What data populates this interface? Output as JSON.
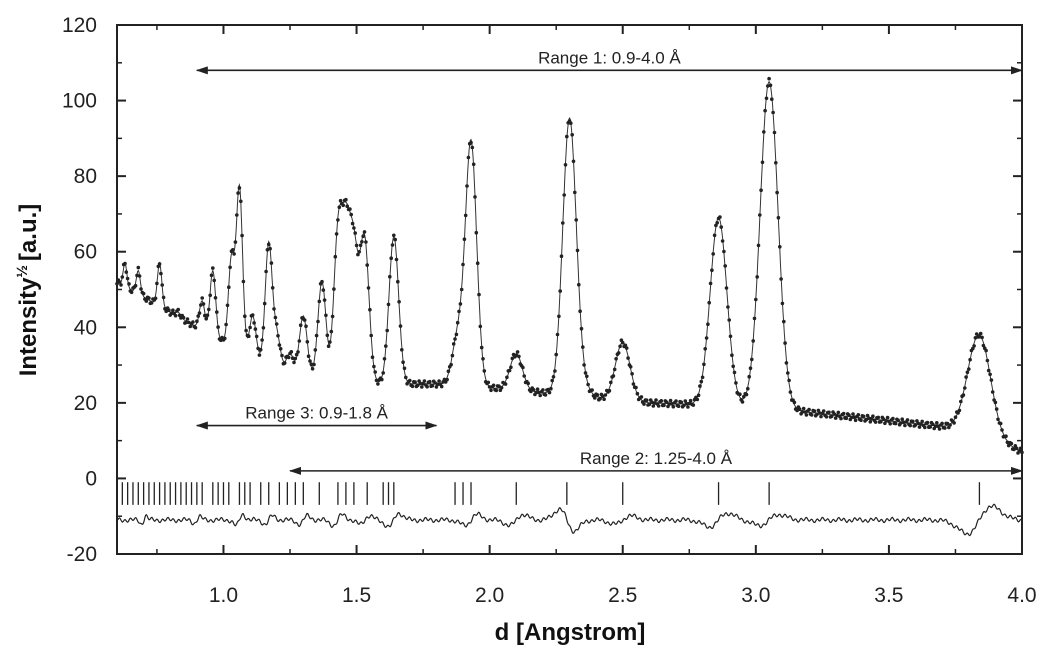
{
  "chart_data": {
    "type": "scatter",
    "title": "",
    "xlabel": "d [Angstrom]",
    "ylabel_main": "Intensity",
    "ylabel_sup": "½",
    "ylabel_unit": "[a.u.]",
    "xlim": [
      0.6,
      4.0
    ],
    "ylim": [
      -20,
      120
    ],
    "x_ticks": [
      1.0,
      1.5,
      2.0,
      2.5,
      3.0,
      3.5,
      4.0
    ],
    "x_tick_labels": [
      "1.0",
      "1.5",
      "2.0",
      "2.5",
      "3.0",
      "3.5",
      "4.0"
    ],
    "y_ticks": [
      -20,
      0,
      20,
      40,
      60,
      80,
      100,
      120
    ],
    "y_tick_labels": [
      "-20",
      "0",
      "20",
      "40",
      "60",
      "80",
      "100",
      "120"
    ],
    "grid": false,
    "series": [
      {
        "kind": "observed-points",
        "background": [
          [
            0.6,
            52
          ],
          [
            0.8,
            44
          ],
          [
            1.0,
            36
          ],
          [
            1.2,
            29
          ],
          [
            1.4,
            26
          ],
          [
            1.6,
            25
          ],
          [
            1.8,
            25
          ],
          [
            2.0,
            24
          ],
          [
            2.3,
            22
          ],
          [
            2.6,
            20
          ],
          [
            3.0,
            19
          ],
          [
            3.4,
            16
          ],
          [
            3.8,
            13
          ],
          [
            4.0,
            7
          ]
        ],
        "peaks": [
          {
            "d": 0.63,
            "height": 57
          },
          {
            "d": 0.68,
            "height": 55
          },
          {
            "d": 0.76,
            "height": 57
          },
          {
            "d": 0.83,
            "height": 44
          },
          {
            "d": 0.92,
            "height": 47
          },
          {
            "d": 0.96,
            "height": 55
          },
          {
            "d": 1.03,
            "height": 58
          },
          {
            "d": 1.06,
            "height": 77
          },
          {
            "d": 1.11,
            "height": 43
          },
          {
            "d": 1.17,
            "height": 62
          },
          {
            "d": 1.2,
            "height": 38
          },
          {
            "d": 1.25,
            "height": 33
          },
          {
            "d": 1.3,
            "height": 43
          },
          {
            "d": 1.37,
            "height": 52
          },
          {
            "d": 1.43,
            "height": 63
          },
          {
            "d": 1.46,
            "height": 61
          },
          {
            "d": 1.49,
            "height": 58
          },
          {
            "d": 1.53,
            "height": 63
          },
          {
            "d": 1.64,
            "height": 64
          },
          {
            "d": 1.88,
            "height": 37
          },
          {
            "d": 1.93,
            "height": 89
          },
          {
            "d": 2.1,
            "height": 33
          },
          {
            "d": 2.3,
            "height": 95
          },
          {
            "d": 2.35,
            "height": 24
          },
          {
            "d": 2.5,
            "height": 36
          },
          {
            "d": 2.86,
            "height": 69
          },
          {
            "d": 3.05,
            "height": 105
          },
          {
            "d": 3.84,
            "height": 38
          }
        ]
      },
      {
        "kind": "reflection-ticks",
        "d": [
          0.62,
          0.64,
          0.66,
          0.68,
          0.7,
          0.72,
          0.74,
          0.76,
          0.78,
          0.8,
          0.82,
          0.84,
          0.86,
          0.88,
          0.9,
          0.92,
          0.96,
          0.98,
          1.0,
          1.02,
          1.06,
          1.08,
          1.1,
          1.14,
          1.17,
          1.21,
          1.24,
          1.27,
          1.3,
          1.36,
          1.43,
          1.46,
          1.49,
          1.54,
          1.6,
          1.62,
          1.64,
          1.87,
          1.9,
          1.93,
          2.1,
          2.29,
          2.5,
          2.86,
          3.05,
          3.84
        ],
        "y_top": -1,
        "y_bottom": -7
      },
      {
        "kind": "difference-curve",
        "baseline": -11,
        "features": [
          {
            "d": 0.7,
            "amp": 1.5
          },
          {
            "d": 0.9,
            "amp": 1.2
          },
          {
            "d": 1.06,
            "amp": 2.0
          },
          {
            "d": 1.17,
            "amp": 1.5
          },
          {
            "d": 1.3,
            "amp": 1.5
          },
          {
            "d": 1.43,
            "amp": 2.0
          },
          {
            "d": 1.53,
            "amp": 1.5
          },
          {
            "d": 1.64,
            "amp": 2.5
          },
          {
            "d": 1.93,
            "amp": 2.0
          },
          {
            "d": 2.1,
            "amp": 2.0
          },
          {
            "d": 2.29,
            "amp": -4.0
          },
          {
            "d": 2.5,
            "amp": 1.5
          },
          {
            "d": 2.86,
            "amp": 2.5
          },
          {
            "d": 3.05,
            "amp": 2.0
          },
          {
            "d": 3.84,
            "amp": 5.0
          }
        ]
      }
    ],
    "annotations": [
      {
        "text": "Range 1: 0.9-4.0 Å",
        "x_start": 0.9,
        "x_end": 4.0,
        "y": 108
      },
      {
        "text": "Range 3: 0.9-1.8 Å",
        "x_start": 0.9,
        "x_end": 1.8,
        "y": 14
      },
      {
        "text": "Range 2: 1.25-4.0 Å",
        "x_start": 1.25,
        "x_end": 4.0,
        "y": 2
      }
    ]
  }
}
